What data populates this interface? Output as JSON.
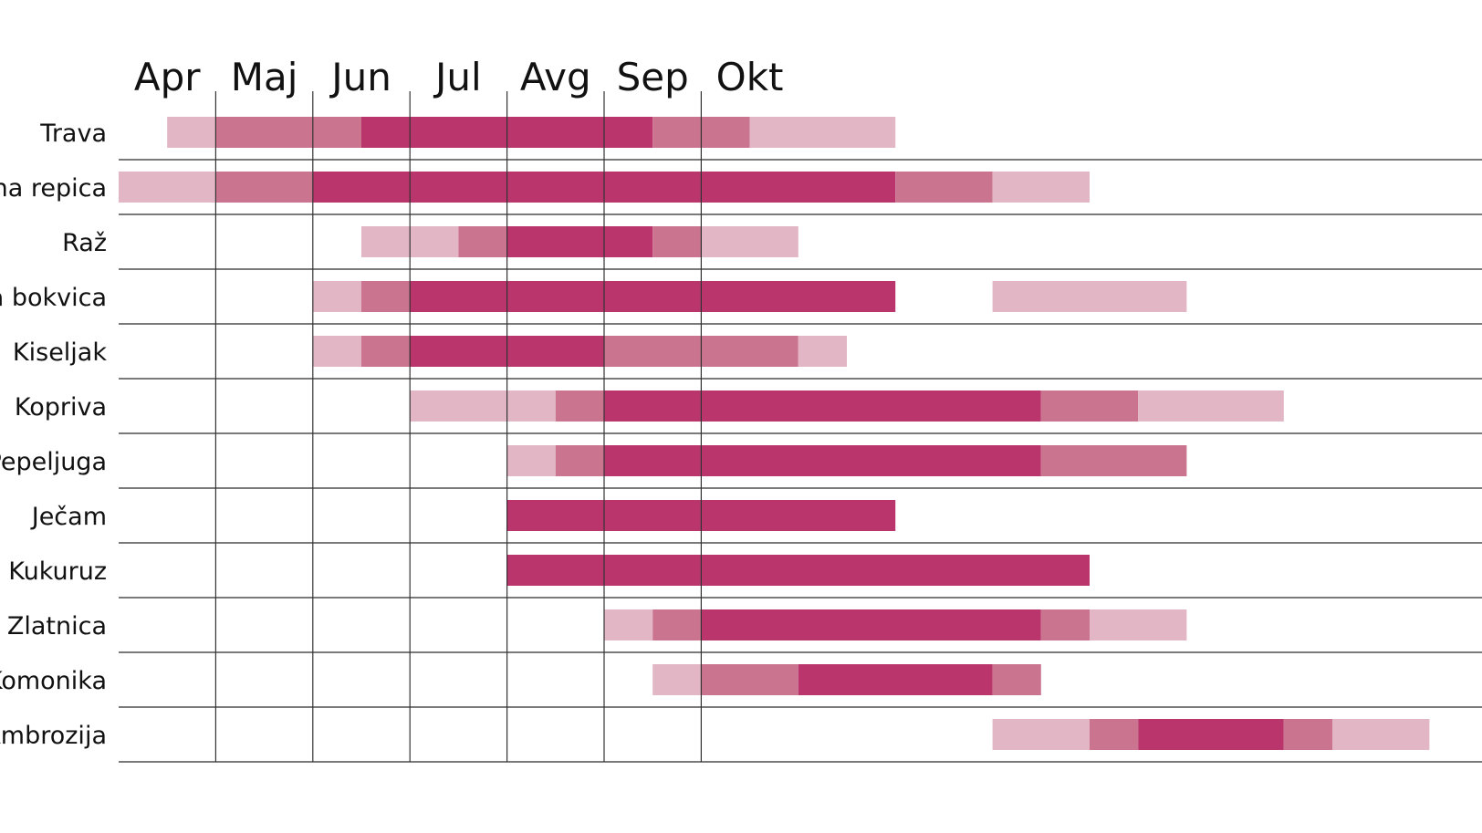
{
  "chart_data": {
    "type": "gantt",
    "months": [
      "Apr",
      "Maj",
      "Jun",
      "Jul",
      "Avg",
      "Sep",
      "Okt"
    ],
    "x_unit": "half-month",
    "colors": {
      "low": "#e2b6c5",
      "medium": "#cb7490",
      "high": "#b9356c"
    },
    "rows": [
      {
        "label": "Trava",
        "segments": [
          [
            1,
            2,
            "low"
          ],
          [
            2,
            5,
            "medium"
          ],
          [
            5,
            8,
            "high"
          ],
          [
            8,
            11,
            "high"
          ],
          [
            11,
            13,
            "medium"
          ],
          [
            13,
            16,
            "low"
          ]
        ]
      },
      {
        "label": "Uljana repica",
        "segments": [
          [
            0,
            2,
            "low"
          ],
          [
            2,
            4,
            "medium"
          ],
          [
            4,
            16,
            "high"
          ],
          [
            16,
            18,
            "medium"
          ],
          [
            18,
            20,
            "low"
          ]
        ]
      },
      {
        "label": "Raž",
        "segments": [
          [
            5,
            7,
            "low"
          ],
          [
            7,
            8,
            "medium"
          ],
          [
            8,
            11,
            "high"
          ],
          [
            11,
            12,
            "medium"
          ],
          [
            12,
            14,
            "low"
          ]
        ]
      },
      {
        "label": "Trputac / Ozka bokvica",
        "segments": [
          [
            4,
            5,
            "low"
          ],
          [
            5,
            6,
            "medium"
          ],
          [
            6,
            16,
            "high"
          ],
          [
            18,
            22,
            "low"
          ]
        ]
      },
      {
        "label": "Kiseljak",
        "segments": [
          [
            4,
            5,
            "low"
          ],
          [
            5,
            6,
            "medium"
          ],
          [
            6,
            10,
            "high"
          ],
          [
            10,
            14,
            "medium"
          ],
          [
            14,
            15,
            "low"
          ]
        ]
      },
      {
        "label": "Kopriva",
        "segments": [
          [
            6,
            9,
            "low"
          ],
          [
            9,
            10,
            "medium"
          ],
          [
            10,
            19,
            "high"
          ],
          [
            19,
            21,
            "medium"
          ],
          [
            21,
            24,
            "low"
          ]
        ]
      },
      {
        "label": "Pepeljuga",
        "segments": [
          [
            8,
            9,
            "low"
          ],
          [
            9,
            10,
            "medium"
          ],
          [
            10,
            19,
            "high"
          ],
          [
            19,
            22,
            "medium"
          ]
        ]
      },
      {
        "label": "Ječam",
        "segments": [
          [
            8,
            16,
            "high"
          ]
        ]
      },
      {
        "label": "Kukuruz",
        "segments": [
          [
            8,
            20,
            "high"
          ]
        ]
      },
      {
        "label": "Zlatnica",
        "segments": [
          [
            10,
            11,
            "low"
          ],
          [
            11,
            12,
            "medium"
          ],
          [
            12,
            19,
            "high"
          ],
          [
            19,
            20,
            "medium"
          ],
          [
            20,
            22,
            "low"
          ]
        ]
      },
      {
        "label": "Pelin / Komonika",
        "segments": [
          [
            11,
            12,
            "low"
          ],
          [
            12,
            14,
            "medium"
          ],
          [
            14,
            18,
            "high"
          ],
          [
            18,
            19,
            "medium"
          ]
        ]
      },
      {
        "label": "Ambrozija",
        "segments": [
          [
            18,
            20,
            "low"
          ],
          [
            20,
            21,
            "medium"
          ],
          [
            21,
            24,
            "high"
          ],
          [
            24,
            25,
            "medium"
          ],
          [
            25,
            27,
            "low"
          ]
        ]
      }
    ]
  }
}
